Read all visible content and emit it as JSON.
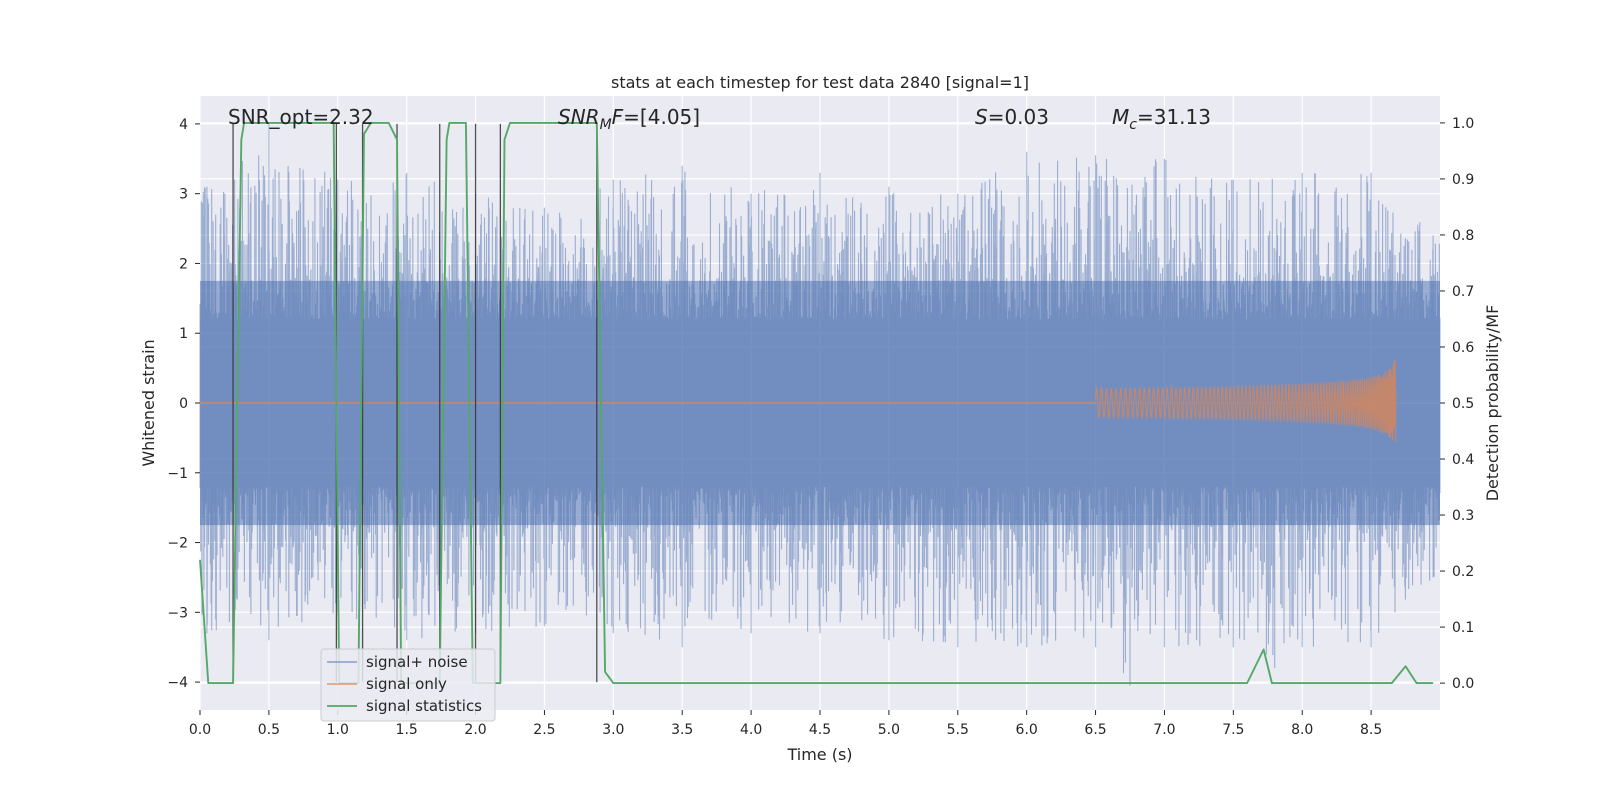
{
  "chart_data": {
    "type": "line",
    "title": "stats at each timestep for test data 2840 [signal=1]",
    "xlabel": "Time (s)",
    "ylabel": "Whitened strain",
    "y2label": "Detection probability/MF",
    "xlim": [
      0.0,
      9.0
    ],
    "ylim": [
      -4.4,
      4.4
    ],
    "y2lim": [
      -0.048,
      1.048
    ],
    "xticks": [
      0.0,
      0.5,
      1.0,
      1.5,
      2.0,
      2.5,
      3.0,
      3.5,
      4.0,
      4.5,
      5.0,
      5.5,
      6.0,
      6.5,
      7.0,
      7.5,
      8.0,
      8.5
    ],
    "yticks": [
      -4,
      -3,
      -2,
      -1,
      0,
      1,
      2,
      3,
      4
    ],
    "y2ticks": [
      0.0,
      0.1,
      0.2,
      0.3,
      0.4,
      0.5,
      0.6,
      0.7,
      0.8,
      0.9,
      1.0
    ],
    "annotations": {
      "snr_opt": "SNR_opt=2.32",
      "snr_mf_italic": "SNR",
      "snr_mf_sub": "M",
      "snr_mf_mid": "F",
      "snr_mf_rest": "=[4.05]",
      "s_italic": "S",
      "s_rest": "=0.03",
      "mc_italic": "M",
      "mc_sub": "c",
      "mc_rest": "=31.13"
    },
    "legend": {
      "placement": "lower-left",
      "entries": [
        "signal+ noise",
        "signal only",
        "signal statistics"
      ]
    },
    "series": [
      {
        "name": "signal+ noise",
        "kind": "noise",
        "color": "#4c72b0",
        "envelope_description": "dense noise, typical |strain| ~1.8, peaks near 3.5",
        "peak_max": [
          [
            0.05,
            3.1
          ],
          [
            0.5,
            4.0
          ],
          [
            1.0,
            3.2
          ],
          [
            1.5,
            3.3
          ],
          [
            2.0,
            3.0
          ],
          [
            2.5,
            2.8
          ],
          [
            3.0,
            3.2
          ],
          [
            3.5,
            3.4
          ],
          [
            4.0,
            3.0
          ],
          [
            4.5,
            3.3
          ],
          [
            5.0,
            3.1
          ],
          [
            5.5,
            3.0
          ],
          [
            6.0,
            3.6
          ],
          [
            6.5,
            3.55
          ],
          [
            7.0,
            3.5
          ],
          [
            7.5,
            3.2
          ],
          [
            8.0,
            3.3
          ],
          [
            8.5,
            3.3
          ],
          [
            8.95,
            2.4
          ]
        ],
        "peak_min": [
          [
            0.05,
            -3.3
          ],
          [
            0.5,
            -3.4
          ],
          [
            1.0,
            -3.0
          ],
          [
            1.5,
            -3.4
          ],
          [
            2.0,
            -3.3
          ],
          [
            2.5,
            -3.2
          ],
          [
            3.0,
            -3.3
          ],
          [
            3.5,
            -3.5
          ],
          [
            4.0,
            -3.3
          ],
          [
            4.5,
            -3.3
          ],
          [
            5.0,
            -3.4
          ],
          [
            5.5,
            -3.5
          ],
          [
            6.0,
            -3.5
          ],
          [
            6.5,
            -3.5
          ],
          [
            6.75,
            -4.05
          ],
          [
            7.0,
            -3.5
          ],
          [
            7.5,
            -3.5
          ],
          [
            7.8,
            -3.8
          ],
          [
            8.0,
            -3.5
          ],
          [
            8.5,
            -3.5
          ],
          [
            8.95,
            -2.5
          ]
        ]
      },
      {
        "name": "signal only",
        "kind": "chirp",
        "color": "#dd8452",
        "start_time": 6.5,
        "merger_time": 8.68,
        "peak_amplitude": 0.68
      },
      {
        "name": "signal statistics",
        "kind": "step",
        "color": "#55a868",
        "axis": "y2",
        "x": [
          0.0,
          0.06,
          0.24,
          0.3,
          0.32,
          0.35,
          0.97,
          1.01,
          1.15,
          1.19,
          1.24,
          1.26,
          1.37,
          1.43,
          1.46,
          1.5,
          1.74,
          1.79,
          1.81,
          1.84,
          1.93,
          1.98,
          2.03,
          2.12,
          2.18,
          2.21,
          2.25,
          2.29,
          2.88,
          2.94,
          3.0,
          7.6,
          7.72,
          7.78,
          7.85,
          8.65,
          8.75,
          8.83,
          8.95
        ],
        "y": [
          0.22,
          0.0,
          0.0,
          0.97,
          1.0,
          1.0,
          1.0,
          0.0,
          0.0,
          0.98,
          1.0,
          1.0,
          1.0,
          0.97,
          0.0,
          0.0,
          0.0,
          0.97,
          1.0,
          1.0,
          1.0,
          0.0,
          0.0,
          0.0,
          0.0,
          0.97,
          1.0,
          1.0,
          1.0,
          0.02,
          0.0,
          0.0,
          0.06,
          0.0,
          0.0,
          0.0,
          0.03,
          0.0,
          0.0
        ]
      },
      {
        "name": "vertical markers",
        "kind": "vlines",
        "color": "#333333",
        "x": [
          0.24,
          0.99,
          1.18,
          1.43,
          1.74,
          2.0,
          2.18,
          2.88
        ],
        "y_top": 4.0,
        "y_bottom": -4.0
      }
    ]
  }
}
